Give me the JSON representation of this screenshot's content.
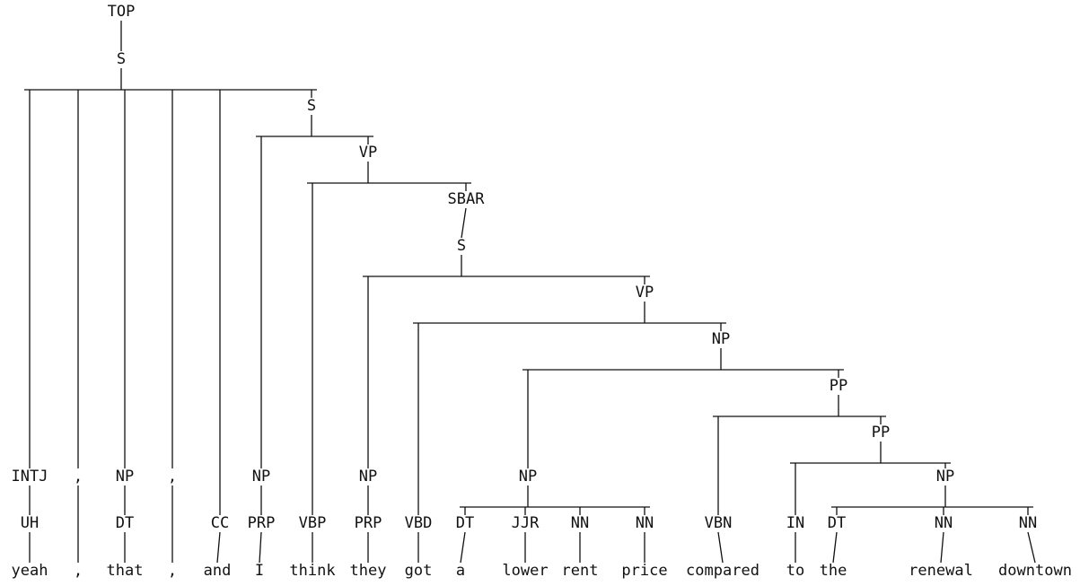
{
  "tree": {
    "nodes": [
      {
        "id": "top",
        "label": "TOP",
        "parent": null
      },
      {
        "id": "s1",
        "label": "S",
        "parent": "top"
      },
      {
        "id": "intj",
        "label": "INTJ",
        "parent": "s1"
      },
      {
        "id": "uh",
        "label": "UH",
        "parent": "intj"
      },
      {
        "id": "w_yeah",
        "label": "yeah",
        "parent": "uh"
      },
      {
        "id": "c1",
        "label": ",",
        "parent": "s1"
      },
      {
        "id": "w_c1",
        "label": ",",
        "parent": "c1"
      },
      {
        "id": "np1",
        "label": "NP",
        "parent": "s1"
      },
      {
        "id": "dt1",
        "label": "DT",
        "parent": "np1"
      },
      {
        "id": "w_that",
        "label": "that",
        "parent": "dt1"
      },
      {
        "id": "c2",
        "label": ",",
        "parent": "s1"
      },
      {
        "id": "w_c2",
        "label": ",",
        "parent": "c2"
      },
      {
        "id": "cc",
        "label": "CC",
        "parent": "s1"
      },
      {
        "id": "w_and",
        "label": "and",
        "parent": "cc"
      },
      {
        "id": "s2",
        "label": "S",
        "parent": "s1"
      },
      {
        "id": "np2",
        "label": "NP",
        "parent": "s2"
      },
      {
        "id": "prp1",
        "label": "PRP",
        "parent": "np2"
      },
      {
        "id": "w_i",
        "label": "I",
        "parent": "prp1"
      },
      {
        "id": "vp1",
        "label": "VP",
        "parent": "s2"
      },
      {
        "id": "vbp",
        "label": "VBP",
        "parent": "vp1"
      },
      {
        "id": "w_think",
        "label": "think",
        "parent": "vbp"
      },
      {
        "id": "sbar",
        "label": "SBAR",
        "parent": "vp1"
      },
      {
        "id": "s3",
        "label": "S",
        "parent": "sbar"
      },
      {
        "id": "np3",
        "label": "NP",
        "parent": "s3"
      },
      {
        "id": "prp2",
        "label": "PRP",
        "parent": "np3"
      },
      {
        "id": "w_they",
        "label": "they",
        "parent": "prp2"
      },
      {
        "id": "vp2",
        "label": "VP",
        "parent": "s3"
      },
      {
        "id": "vbd",
        "label": "VBD",
        "parent": "vp2"
      },
      {
        "id": "w_got",
        "label": "got",
        "parent": "vbd"
      },
      {
        "id": "np4",
        "label": "NP",
        "parent": "vp2"
      },
      {
        "id": "np5",
        "label": "NP",
        "parent": "np4"
      },
      {
        "id": "dt2",
        "label": "DT",
        "parent": "np5"
      },
      {
        "id": "w_a",
        "label": "a",
        "parent": "dt2"
      },
      {
        "id": "jjr",
        "label": "JJR",
        "parent": "np5"
      },
      {
        "id": "w_lower",
        "label": "lower",
        "parent": "jjr"
      },
      {
        "id": "nn1",
        "label": "NN",
        "parent": "np5"
      },
      {
        "id": "w_rent",
        "label": "rent",
        "parent": "nn1"
      },
      {
        "id": "nn2",
        "label": "NN",
        "parent": "np5"
      },
      {
        "id": "w_price",
        "label": "price",
        "parent": "nn2"
      },
      {
        "id": "pp1",
        "label": "PP",
        "parent": "np4"
      },
      {
        "id": "vbn",
        "label": "VBN",
        "parent": "pp1"
      },
      {
        "id": "w_compared",
        "label": "compared",
        "parent": "vbn"
      },
      {
        "id": "pp2",
        "label": "PP",
        "parent": "pp1"
      },
      {
        "id": "in",
        "label": "IN",
        "parent": "pp2"
      },
      {
        "id": "w_to",
        "label": "to",
        "parent": "in"
      },
      {
        "id": "np6",
        "label": "NP",
        "parent": "pp2"
      },
      {
        "id": "dt3",
        "label": "DT",
        "parent": "np6"
      },
      {
        "id": "w_the",
        "label": "the",
        "parent": "dt3"
      },
      {
        "id": "nn3",
        "label": "NN",
        "parent": "np6"
      },
      {
        "id": "w_renewal",
        "label": "renewal",
        "parent": "nn3"
      },
      {
        "id": "nn4",
        "label": "NN",
        "parent": "np6"
      },
      {
        "id": "w_downtown",
        "label": "downtown",
        "parent": "nn4"
      }
    ]
  }
}
